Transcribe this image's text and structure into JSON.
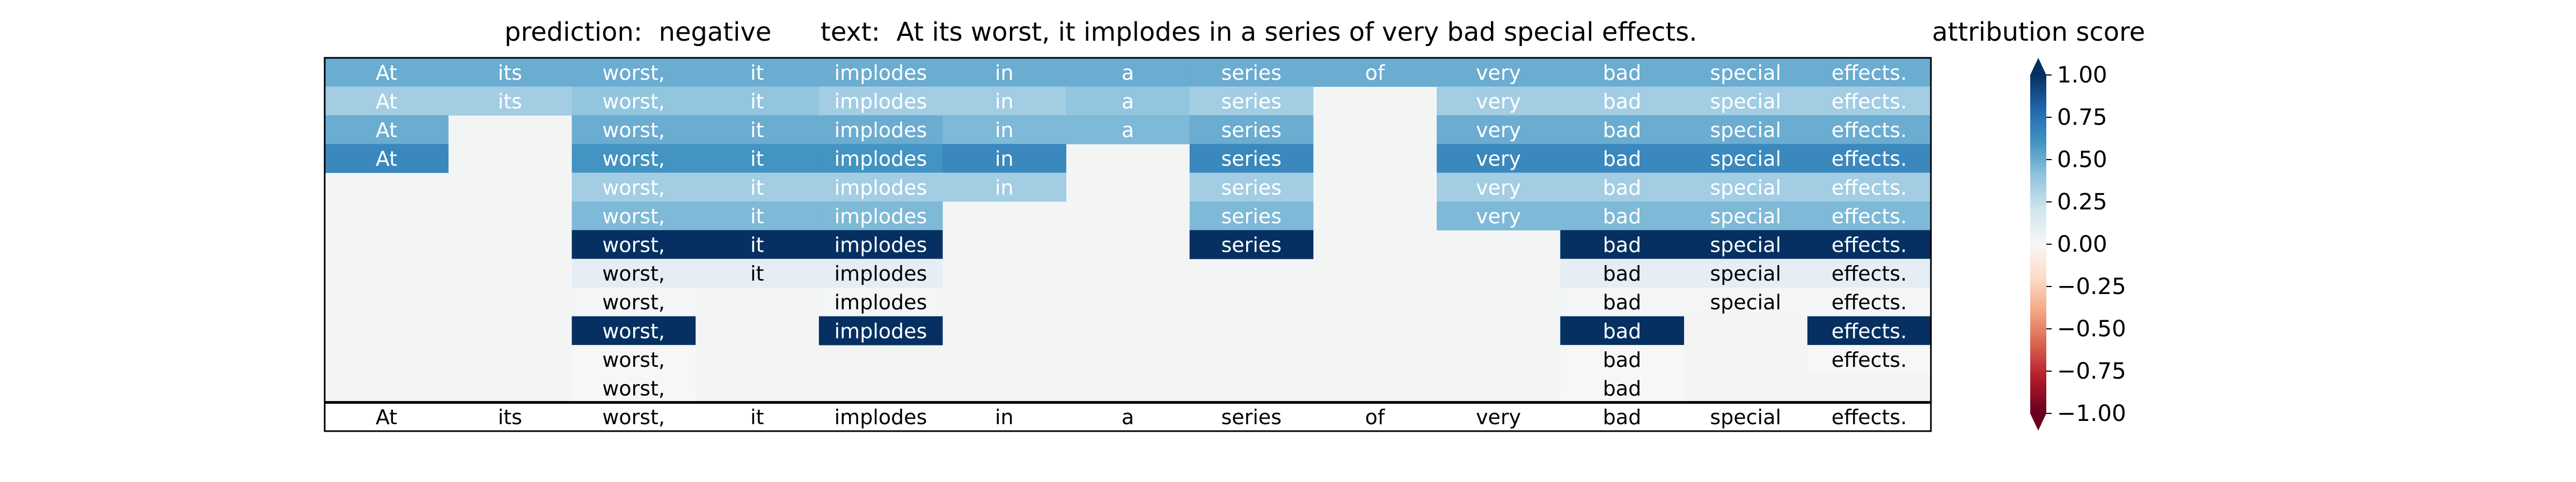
{
  "header": {
    "prediction_label": "prediction:",
    "prediction_value": "negative",
    "text_label": "text:",
    "text_value": "At its worst, it implodes in a series of very bad special effects.",
    "colorbar_title": "attribution score"
  },
  "chart_data": {
    "type": "heatmap",
    "title": "prediction:  negative     text:  At its worst, it implodes in a series of very bad special effects.",
    "tokens": [
      "At",
      "its",
      "worst,",
      "it",
      "implodes",
      "in",
      "a",
      "series",
      "of",
      "very",
      "bad",
      "special",
      "effects."
    ],
    "rows": [
      [
        0.5,
        0.5,
        0.5,
        0.5,
        0.5,
        0.5,
        0.5,
        0.5,
        0.5,
        0.5,
        0.5,
        0.5,
        0.5
      ],
      [
        0.35,
        0.35,
        0.4,
        0.4,
        0.35,
        0.35,
        0.4,
        0.35,
        null,
        0.35,
        0.35,
        0.35,
        0.35
      ],
      [
        0.5,
        null,
        0.5,
        0.5,
        0.5,
        0.45,
        0.45,
        0.5,
        null,
        0.5,
        0.5,
        0.5,
        0.5
      ],
      [
        0.65,
        null,
        0.6,
        0.6,
        0.6,
        0.65,
        null,
        0.65,
        null,
        0.65,
        0.65,
        0.65,
        0.65
      ],
      [
        null,
        null,
        0.35,
        0.35,
        0.35,
        0.35,
        null,
        0.35,
        null,
        0.35,
        0.35,
        0.35,
        0.35
      ],
      [
        null,
        null,
        0.45,
        0.45,
        0.45,
        null,
        null,
        0.45,
        null,
        0.45,
        0.45,
        0.45,
        0.45
      ],
      [
        null,
        null,
        1.0,
        1.0,
        1.0,
        null,
        null,
        1.0,
        null,
        null,
        1.0,
        1.0,
        1.0
      ],
      [
        null,
        null,
        0.1,
        0.1,
        0.1,
        null,
        null,
        null,
        null,
        null,
        0.1,
        0.1,
        0.1
      ],
      [
        null,
        null,
        0.02,
        null,
        0.02,
        null,
        null,
        null,
        null,
        null,
        0.02,
        0.02,
        0.02
      ],
      [
        null,
        null,
        1.0,
        null,
        1.0,
        null,
        null,
        null,
        null,
        null,
        1.0,
        null,
        1.0
      ],
      [
        null,
        null,
        0.0,
        null,
        null,
        null,
        null,
        null,
        null,
        null,
        0.0,
        null,
        0.0
      ],
      [
        null,
        null,
        0.0,
        null,
        null,
        null,
        null,
        null,
        null,
        null,
        0.0,
        null,
        null
      ]
    ],
    "colorbar": {
      "label": "attribution score",
      "range": [
        -1.0,
        1.0
      ],
      "ticks": [
        0.75,
        0.5,
        0.25,
        0.0,
        -0.25,
        -0.5,
        -0.75
      ],
      "tick_labels": [
        "0.75",
        "0.50",
        "0.25",
        "0.00",
        "−0.25",
        "−0.50",
        "−0.75"
      ],
      "end_labels": [
        "1.00",
        "−1.00"
      ],
      "colormap": "RdBu"
    }
  }
}
